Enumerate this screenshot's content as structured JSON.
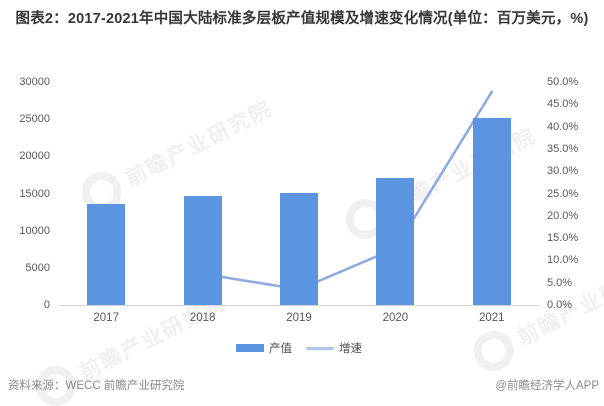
{
  "title": "图表2：2017-2021年中国大陆标准多层板产值规模及增速变化情况(单位：百万美元，%)",
  "legend": [
    {
      "label": "产值",
      "type": "bar"
    },
    {
      "label": "增速",
      "type": "line"
    }
  ],
  "footer": {
    "source": "资料来源：WECC 前瞻产业研究院",
    "credit": "@前瞻经济学人APP"
  },
  "watermark": {
    "text": "前瞻产业研究院"
  },
  "colors": {
    "bar": "#5b94e0",
    "line": "#8facdf",
    "legend_line": "#afc7e9",
    "axis_text": "#595959",
    "axis_line": "#d5d5d5",
    "title_text": "#363636",
    "footer_text": "#8a8a8a"
  },
  "chart_data": {
    "type": "bar+line",
    "title": "2017-2021年中国大陆标准多层板产值规模及增速变化情况",
    "unit_note": "单位：百万美元，%",
    "categories": [
      "2017",
      "2018",
      "2019",
      "2020",
      "2021"
    ],
    "series": [
      {
        "name": "产值",
        "type": "bar",
        "axis": "left",
        "values": [
          13600,
          14650,
          15100,
          17100,
          25200
        ]
      },
      {
        "name": "增速",
        "type": "line",
        "axis": "right",
        "values": [
          null,
          7.0,
          3.5,
          12.7,
          47.8
        ]
      }
    ],
    "left_axis": {
      "min": 0,
      "max": 30000,
      "step": 5000,
      "ticks": [
        "0",
        "5000",
        "10000",
        "15000",
        "20000",
        "25000",
        "30000"
      ]
    },
    "right_axis": {
      "min": 0,
      "max": 50,
      "step": 5,
      "ticks": [
        "0.0%",
        "5.0%",
        "10.0%",
        "15.0%",
        "20.0%",
        "25.0%",
        "30.0%",
        "35.0%",
        "40.0%",
        "45.0%",
        "50.0%"
      ]
    },
    "grid": "none",
    "legend_position": "bottom-center"
  }
}
